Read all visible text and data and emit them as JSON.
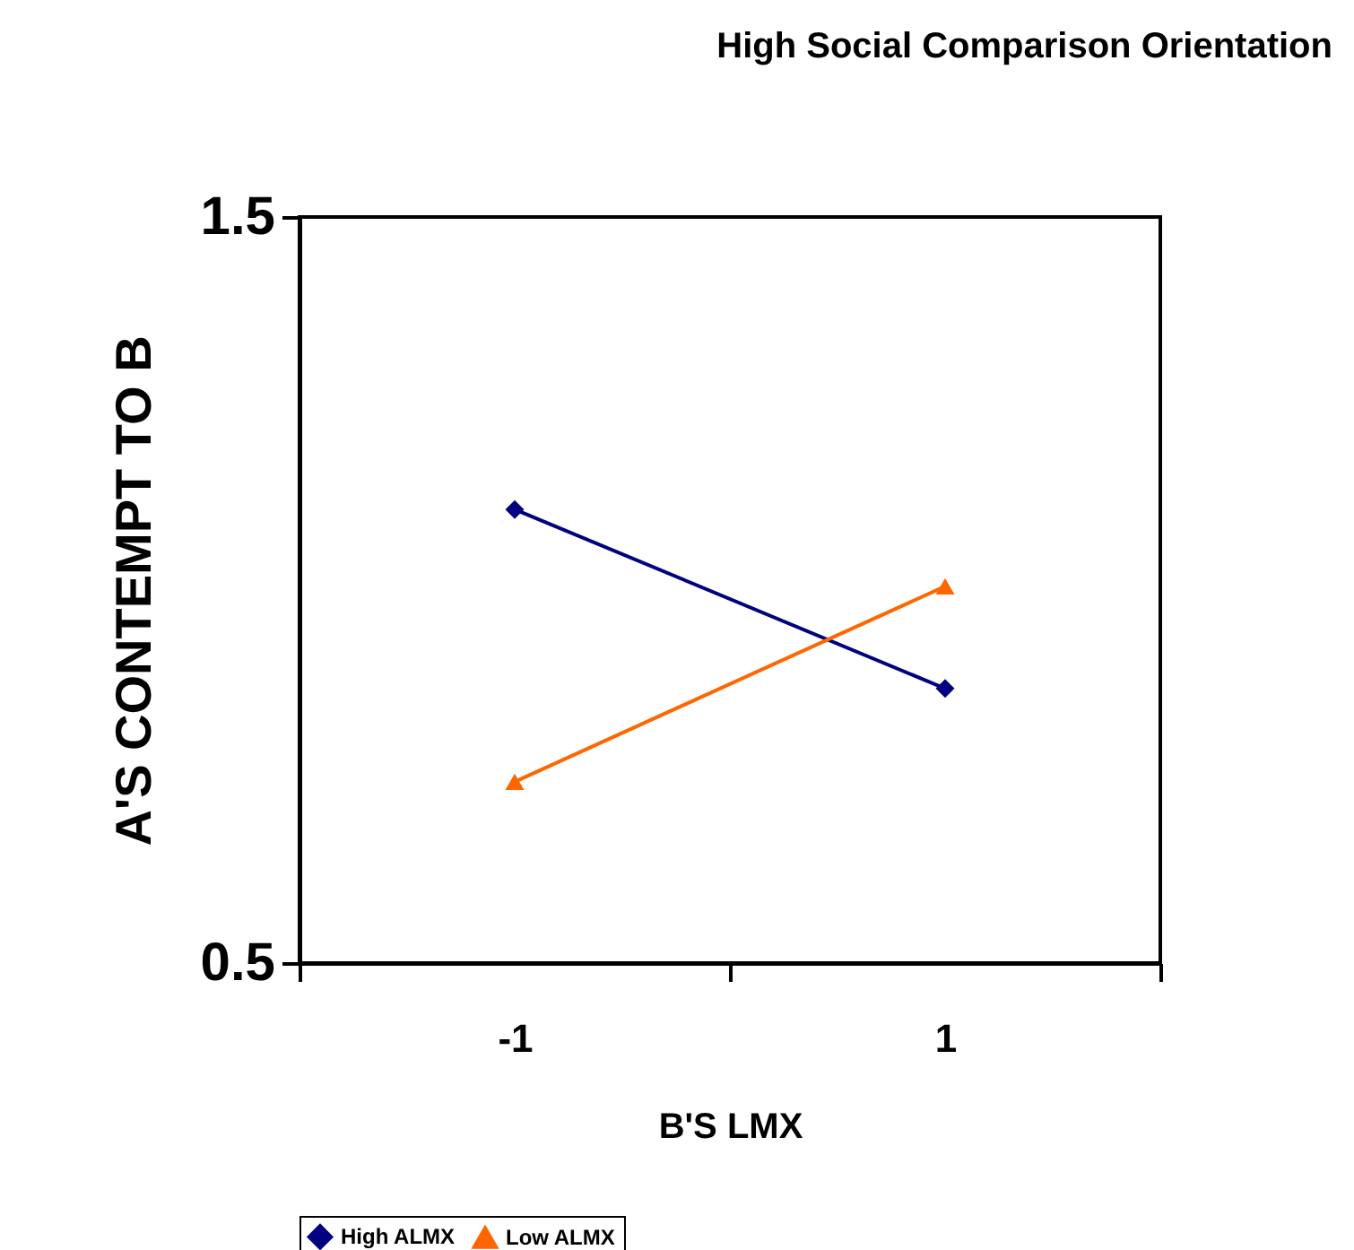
{
  "chart_data": {
    "type": "line",
    "title": "High Social Comparison Orientation",
    "xlabel": "B'S LMX",
    "ylabel": "A'S CONTEMPT TO B",
    "categories": [
      "-1",
      "1"
    ],
    "series": [
      {
        "name": "High ALMX",
        "color": "#000080",
        "marker": "diamond",
        "values": [
          1.108,
          0.868
        ]
      },
      {
        "name": "Low ALMX",
        "color": "#ff6600",
        "marker": "triangle",
        "values": [
          0.743,
          1.005
        ]
      }
    ],
    "ylim": [
      0.5,
      1.5
    ],
    "yticks": [
      0.5,
      1.5
    ],
    "grid": false,
    "legend": "bottom",
    "line_style": "solid"
  }
}
